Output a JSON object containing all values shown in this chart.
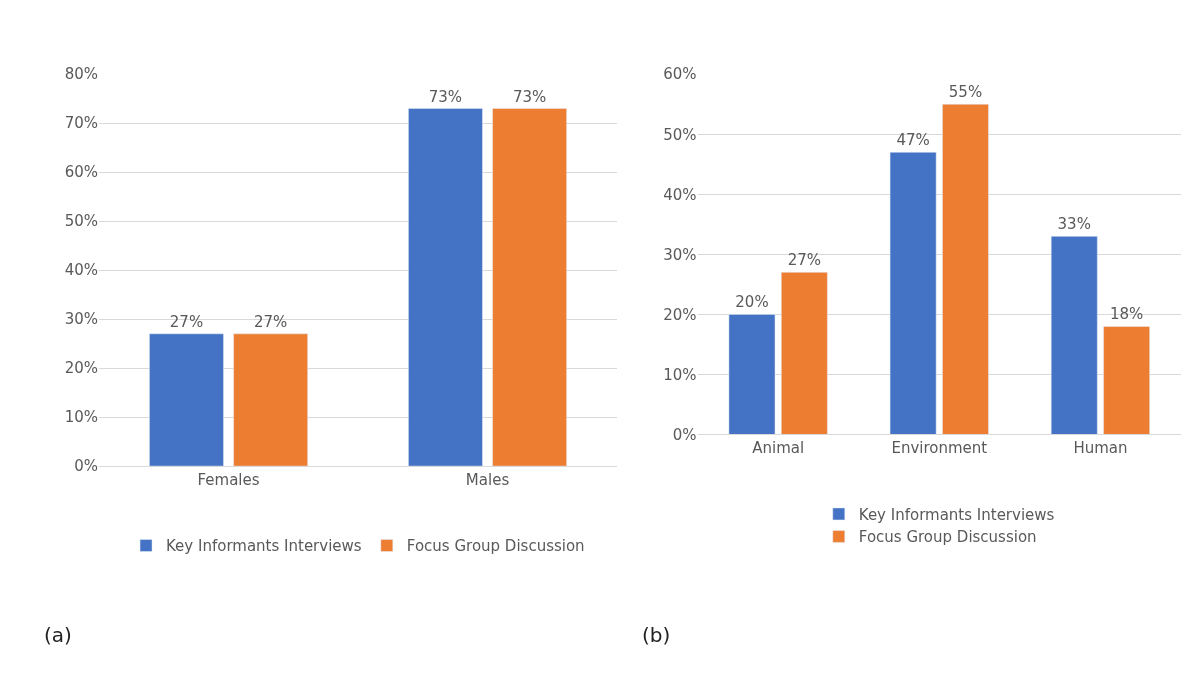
{
  "chart_data": [
    {
      "type": "bar",
      "categories": [
        "Females",
        "Males"
      ],
      "series": [
        {
          "name": "Key Informants Interviews",
          "color": "#4472c4",
          "values": [
            27,
            73
          ],
          "value_labels": [
            "27%",
            "73%"
          ]
        },
        {
          "name": "Focus Group Discussion",
          "color": "#ed7d31",
          "values": [
            27,
            73
          ],
          "value_labels": [
            "27%",
            "73%"
          ]
        }
      ],
      "ylim": [
        0,
        80
      ],
      "yticks": [
        {
          "value": 0,
          "label": "0%"
        },
        {
          "value": 10,
          "label": "10%"
        },
        {
          "value": 20,
          "label": "20%"
        },
        {
          "value": 30,
          "label": "30%"
        },
        {
          "value": 40,
          "label": "40%"
        },
        {
          "value": 50,
          "label": "50%"
        },
        {
          "value": 60,
          "label": "60%"
        },
        {
          "value": 70,
          "label": "70%"
        },
        {
          "value": 80,
          "label": "80%"
        }
      ],
      "grid": "y",
      "legend": "bottom",
      "annotations": [
        "(a)"
      ]
    },
    {
      "type": "bar",
      "categories": [
        "Animal",
        "Environment",
        "Human"
      ],
      "series": [
        {
          "name": "Key Informants Interviews",
          "color": "#4472c4",
          "values": [
            20,
            47,
            33
          ],
          "value_labels": [
            "20%",
            "47%",
            "33%"
          ]
        },
        {
          "name": "Focus Group Discussion",
          "color": "#ed7d31",
          "values": [
            27,
            55,
            18
          ],
          "value_labels": [
            "27%",
            "55%",
            "18%"
          ]
        }
      ],
      "ylim": [
        0,
        60
      ],
      "yticks": [
        {
          "value": 0,
          "label": "0%"
        },
        {
          "value": 10,
          "label": "10%"
        },
        {
          "value": 20,
          "label": "20%"
        },
        {
          "value": 30,
          "label": "30%"
        },
        {
          "value": 40,
          "label": "40%"
        },
        {
          "value": 50,
          "label": "50%"
        },
        {
          "value": 60,
          "label": "60%"
        }
      ],
      "grid": "y",
      "legend": "bottom",
      "annotations": [
        "(b)"
      ]
    }
  ]
}
